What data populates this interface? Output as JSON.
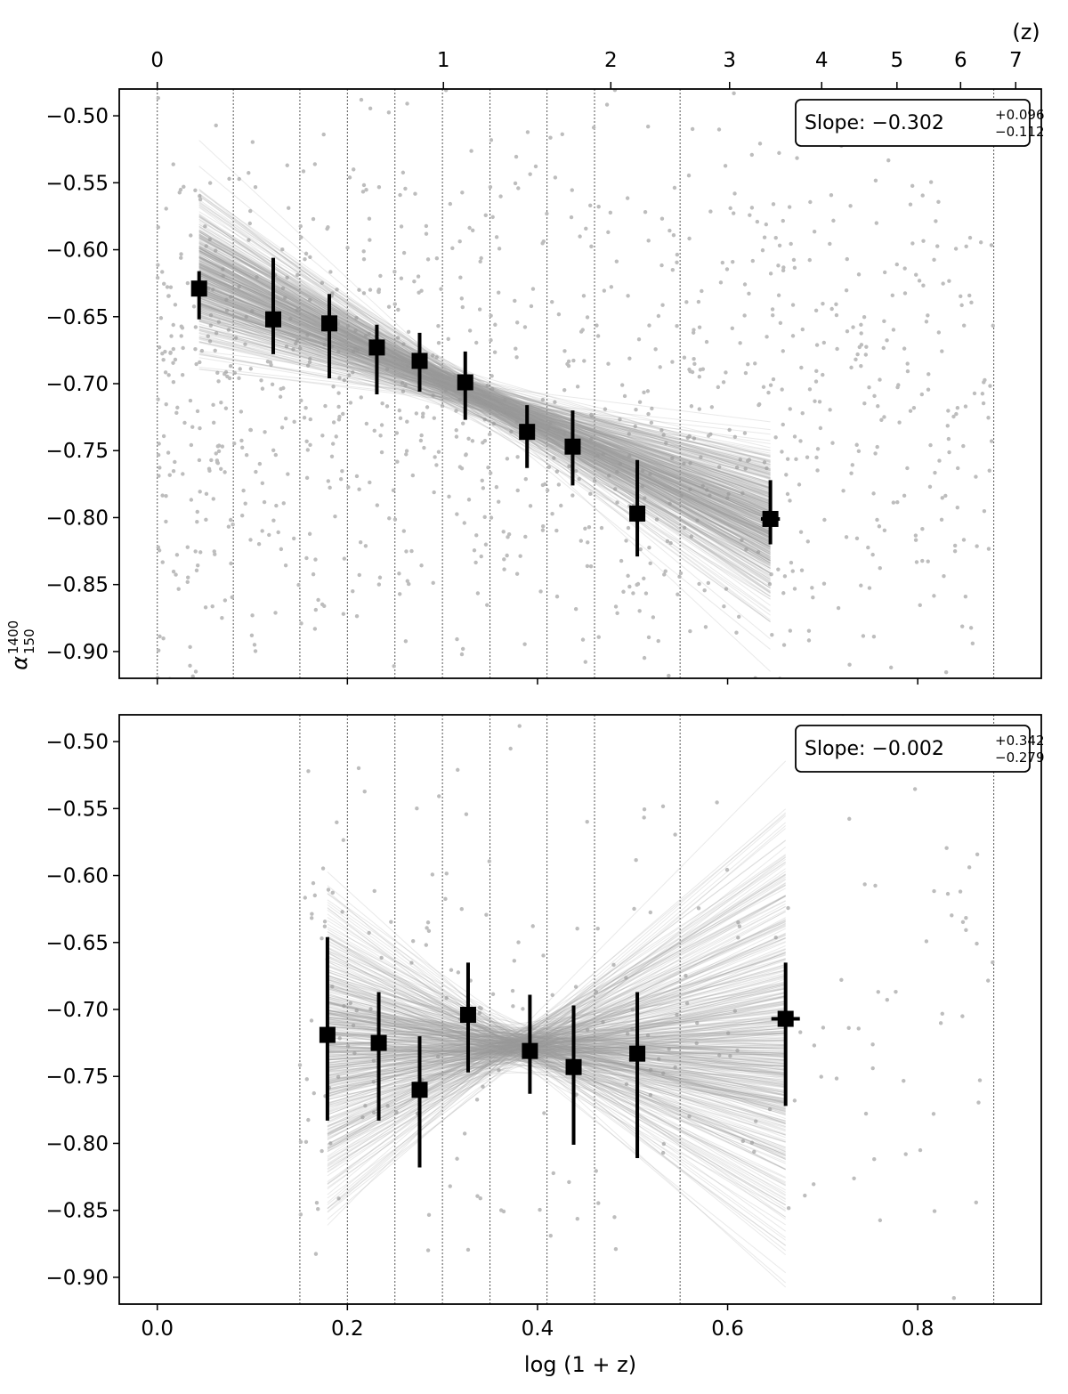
{
  "chart_data": {
    "type": "scatter",
    "xlabel": "log (1 + z)",
    "ylabel_symbol": "α",
    "ylabel_sup": "1400",
    "ylabel_sub": "150",
    "xlim": [
      -0.04,
      0.93
    ],
    "ylim": [
      -0.92,
      -0.48
    ],
    "x_ticks": [
      0.0,
      0.2,
      0.4,
      0.6,
      0.8
    ],
    "x_tick_labels": [
      "0.0",
      "0.2",
      "0.4",
      "0.6",
      "0.8"
    ],
    "y_ticks": [
      -0.5,
      -0.55,
      -0.6,
      -0.65,
      -0.7,
      -0.75,
      -0.8,
      -0.85,
      -0.9
    ],
    "y_tick_labels": [
      "−0.50",
      "−0.55",
      "−0.60",
      "−0.65",
      "−0.70",
      "−0.75",
      "−0.80",
      "−0.85",
      "−0.90"
    ],
    "top_axis": {
      "label": "(z)",
      "ticks_z": [
        0,
        1,
        2,
        3,
        4,
        5,
        6,
        7
      ],
      "tick_labels": [
        "0",
        "1",
        "2",
        "3",
        "4",
        "5",
        "6",
        "7"
      ]
    },
    "panels": [
      {
        "name": "top",
        "slope_label": "Slope: −0.302",
        "slope_plus": "+0.096",
        "slope_minus": "−0.112",
        "bin_edges": [
          0.0,
          0.08,
          0.15,
          0.2,
          0.25,
          0.3,
          0.35,
          0.41,
          0.46,
          0.55,
          0.88
        ],
        "binned_points": [
          {
            "x": 0.044,
            "y": -0.629,
            "y_err_low": 0.023,
            "y_err_high": 0.013,
            "x_err": 0.0
          },
          {
            "x": 0.122,
            "y": -0.652,
            "y_err_low": 0.026,
            "y_err_high": 0.046,
            "x_err": 0.0
          },
          {
            "x": 0.181,
            "y": -0.655,
            "y_err_low": 0.041,
            "y_err_high": 0.022,
            "x_err": 0.0
          },
          {
            "x": 0.231,
            "y": -0.673,
            "y_err_low": 0.035,
            "y_err_high": 0.017,
            "x_err": 0.0
          },
          {
            "x": 0.276,
            "y": -0.683,
            "y_err_low": 0.023,
            "y_err_high": 0.021,
            "x_err": 0.0
          },
          {
            "x": 0.324,
            "y": -0.699,
            "y_err_low": 0.028,
            "y_err_high": 0.023,
            "x_err": 0.0
          },
          {
            "x": 0.389,
            "y": -0.736,
            "y_err_low": 0.027,
            "y_err_high": 0.02,
            "x_err": 0.0
          },
          {
            "x": 0.437,
            "y": -0.747,
            "y_err_low": 0.029,
            "y_err_high": 0.027,
            "x_err": 0.0
          },
          {
            "x": 0.505,
            "y": -0.797,
            "y_err_low": 0.032,
            "y_err_high": 0.04,
            "x_err": 0.0
          },
          {
            "x": 0.645,
            "y": -0.801,
            "y_err_low": 0.019,
            "y_err_high": 0.029,
            "x_err": 0.01
          }
        ],
        "fit": {
          "slope": -0.302,
          "slope_err_high": 0.096,
          "slope_err_low": 0.112,
          "pivot_x": 0.33,
          "pivot_y": -0.708,
          "x_range": [
            0.044,
            0.645
          ]
        },
        "scatter_n": 1100,
        "scatter_x_range": [
          0.0,
          0.88
        ],
        "scatter_y_center": -0.72,
        "scatter_y_spread": 0.11
      },
      {
        "name": "bottom",
        "slope_label": "Slope: −0.002",
        "slope_plus": "+0.342",
        "slope_minus": "−0.279",
        "bin_edges": [
          0.15,
          0.2,
          0.25,
          0.3,
          0.35,
          0.41,
          0.46,
          0.55,
          0.88
        ],
        "binned_points": [
          {
            "x": 0.179,
            "y": -0.719,
            "y_err_low": 0.064,
            "y_err_high": 0.073,
            "x_err": 0.0
          },
          {
            "x": 0.233,
            "y": -0.725,
            "y_err_low": 0.058,
            "y_err_high": 0.038,
            "x_err": 0.0
          },
          {
            "x": 0.276,
            "y": -0.76,
            "y_err_low": 0.058,
            "y_err_high": 0.04,
            "x_err": 0.0
          },
          {
            "x": 0.327,
            "y": -0.704,
            "y_err_low": 0.043,
            "y_err_high": 0.039,
            "x_err": 0.0
          },
          {
            "x": 0.392,
            "y": -0.731,
            "y_err_low": 0.032,
            "y_err_high": 0.042,
            "x_err": 0.0
          },
          {
            "x": 0.438,
            "y": -0.743,
            "y_err_low": 0.058,
            "y_err_high": 0.046,
            "x_err": 0.0
          },
          {
            "x": 0.505,
            "y": -0.733,
            "y_err_low": 0.078,
            "y_err_high": 0.046,
            "x_err": 0.0
          },
          {
            "x": 0.661,
            "y": -0.707,
            "y_err_low": 0.065,
            "y_err_high": 0.042,
            "x_err": 0.015
          }
        ],
        "fit": {
          "slope": -0.002,
          "slope_err_high": 0.342,
          "slope_err_low": 0.279,
          "pivot_x": 0.38,
          "pivot_y": -0.727,
          "x_range": [
            0.179,
            0.661
          ]
        },
        "scatter_n": 230,
        "scatter_x_range": [
          0.15,
          0.88
        ],
        "scatter_y_center": -0.72,
        "scatter_y_spread": 0.11
      }
    ]
  }
}
